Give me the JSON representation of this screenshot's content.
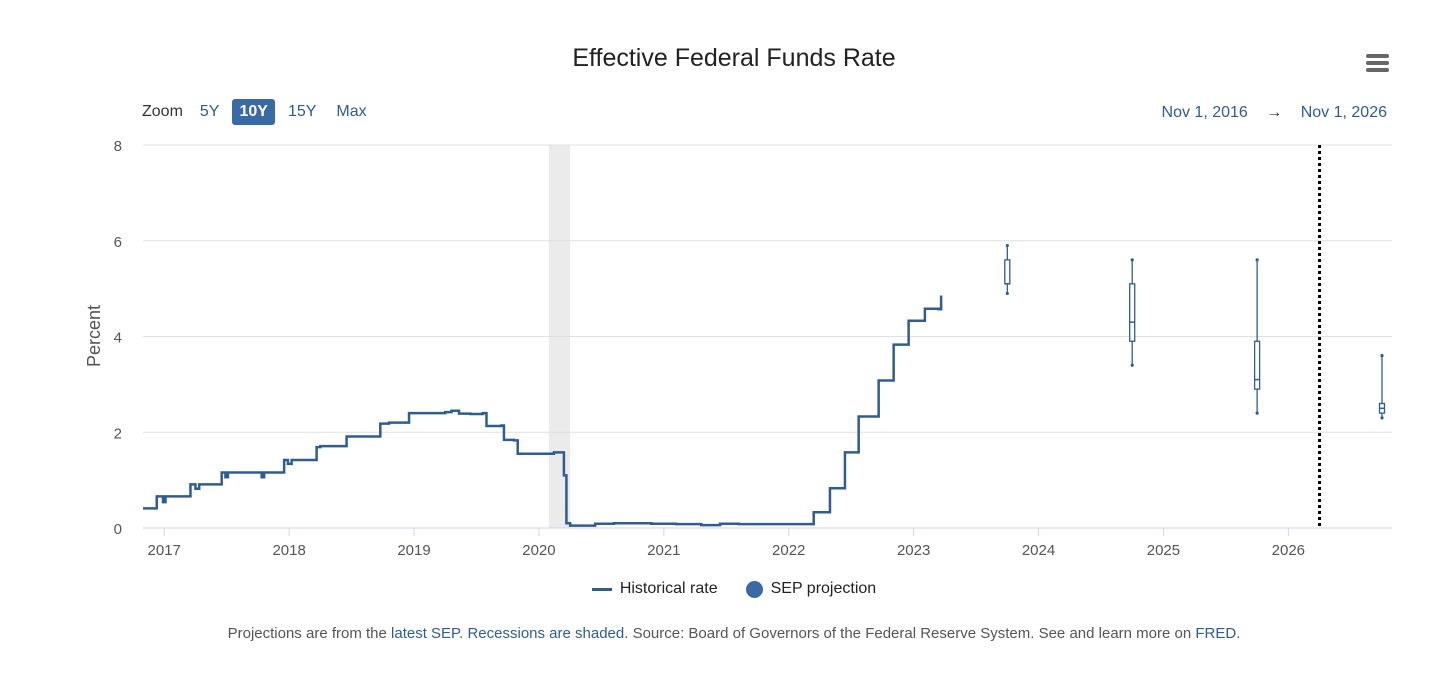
{
  "chart_data": {
    "type": "line",
    "title": "Effective Federal Funds Rate",
    "ylabel": "Percent",
    "xlabel": "",
    "ylim": [
      0,
      8
    ],
    "xlim": [
      2016.83,
      2026.83
    ],
    "yticks": [
      "0",
      "2",
      "4",
      "6",
      "8"
    ],
    "xticks": [
      "2017",
      "2018",
      "2019",
      "2020",
      "2021",
      "2022",
      "2023",
      "2024",
      "2025",
      "2026"
    ],
    "grid": true,
    "legend_position": "bottom-center",
    "series": [
      {
        "name": "Historical rate",
        "color": "#2f5d8f",
        "step": true,
        "points": [
          [
            2016.83,
            0.41
          ],
          [
            2016.94,
            0.66
          ],
          [
            2016.99,
            0.54
          ],
          [
            2017.01,
            0.66
          ],
          [
            2017.21,
            0.91
          ],
          [
            2017.25,
            0.82
          ],
          [
            2017.28,
            0.91
          ],
          [
            2017.46,
            1.16
          ],
          [
            2017.49,
            1.06
          ],
          [
            2017.51,
            1.16
          ],
          [
            2017.77,
            1.16
          ],
          [
            2017.78,
            1.06
          ],
          [
            2017.8,
            1.16
          ],
          [
            2017.96,
            1.42
          ],
          [
            2017.99,
            1.34
          ],
          [
            2018.02,
            1.42
          ],
          [
            2018.22,
            1.69
          ],
          [
            2018.25,
            1.71
          ],
          [
            2018.46,
            1.91
          ],
          [
            2018.73,
            2.18
          ],
          [
            2018.8,
            2.2
          ],
          [
            2018.96,
            2.4
          ],
          [
            2019.25,
            2.42
          ],
          [
            2019.3,
            2.45
          ],
          [
            2019.36,
            2.39
          ],
          [
            2019.45,
            2.38
          ],
          [
            2019.55,
            2.4
          ],
          [
            2019.58,
            2.13
          ],
          [
            2019.7,
            2.14
          ],
          [
            2019.72,
            1.84
          ],
          [
            2019.8,
            1.83
          ],
          [
            2019.83,
            1.55
          ],
          [
            2020.12,
            1.58
          ],
          [
            2020.2,
            1.1
          ],
          [
            2020.22,
            0.1
          ],
          [
            2020.25,
            0.05
          ],
          [
            2020.45,
            0.09
          ],
          [
            2020.6,
            0.1
          ],
          [
            2020.9,
            0.09
          ],
          [
            2021.1,
            0.08
          ],
          [
            2021.3,
            0.06
          ],
          [
            2021.45,
            0.09
          ],
          [
            2021.6,
            0.08
          ],
          [
            2021.8,
            0.08
          ],
          [
            2022.2,
            0.33
          ],
          [
            2022.33,
            0.83
          ],
          [
            2022.45,
            1.58
          ],
          [
            2022.56,
            2.33
          ],
          [
            2022.72,
            3.08
          ],
          [
            2022.84,
            3.83
          ],
          [
            2022.96,
            4.33
          ],
          [
            2023.09,
            4.58
          ],
          [
            2023.2,
            4.57
          ],
          [
            2023.22,
            4.83
          ],
          [
            2023.23,
            4.83
          ]
        ]
      },
      {
        "name": "SEP projection",
        "color": "#2f5d8f",
        "type": "boxplot",
        "boxes": [
          {
            "x": 2023.75,
            "min": 4.9,
            "q1": 5.1,
            "median": 5.1,
            "q3": 5.6,
            "max": 5.9
          },
          {
            "x": 2024.75,
            "min": 3.4,
            "q1": 3.9,
            "median": 4.3,
            "q3": 5.1,
            "max": 5.6
          },
          {
            "x": 2025.75,
            "min": 2.4,
            "q1": 2.9,
            "median": 3.1,
            "q3": 3.9,
            "max": 5.6
          },
          {
            "x": 2026.75,
            "min": 2.3,
            "q1": 2.4,
            "median": 2.5,
            "q3": 2.6,
            "max": 3.6
          }
        ]
      }
    ],
    "recessions": [
      [
        2020.08,
        2020.25
      ]
    ],
    "annotations": [
      {
        "type": "dotted-vertical-line",
        "x": 2026.25
      }
    ]
  },
  "zoom": {
    "label": "Zoom",
    "buttons": [
      "5Y",
      "10Y",
      "15Y",
      "Max"
    ],
    "selected": "10Y"
  },
  "range": {
    "from": "Nov 1, 2016",
    "arrow": "→",
    "to": "Nov 1, 2026"
  },
  "footer": {
    "t1": "Projections are from the ",
    "link1": "latest SEP",
    "t2": ". ",
    "link2": "Recessions are shaded",
    "t3": ". Source: Board of Governors of the Federal Reserve System. See and learn more on ",
    "link3": "FRED",
    "t4": "."
  }
}
